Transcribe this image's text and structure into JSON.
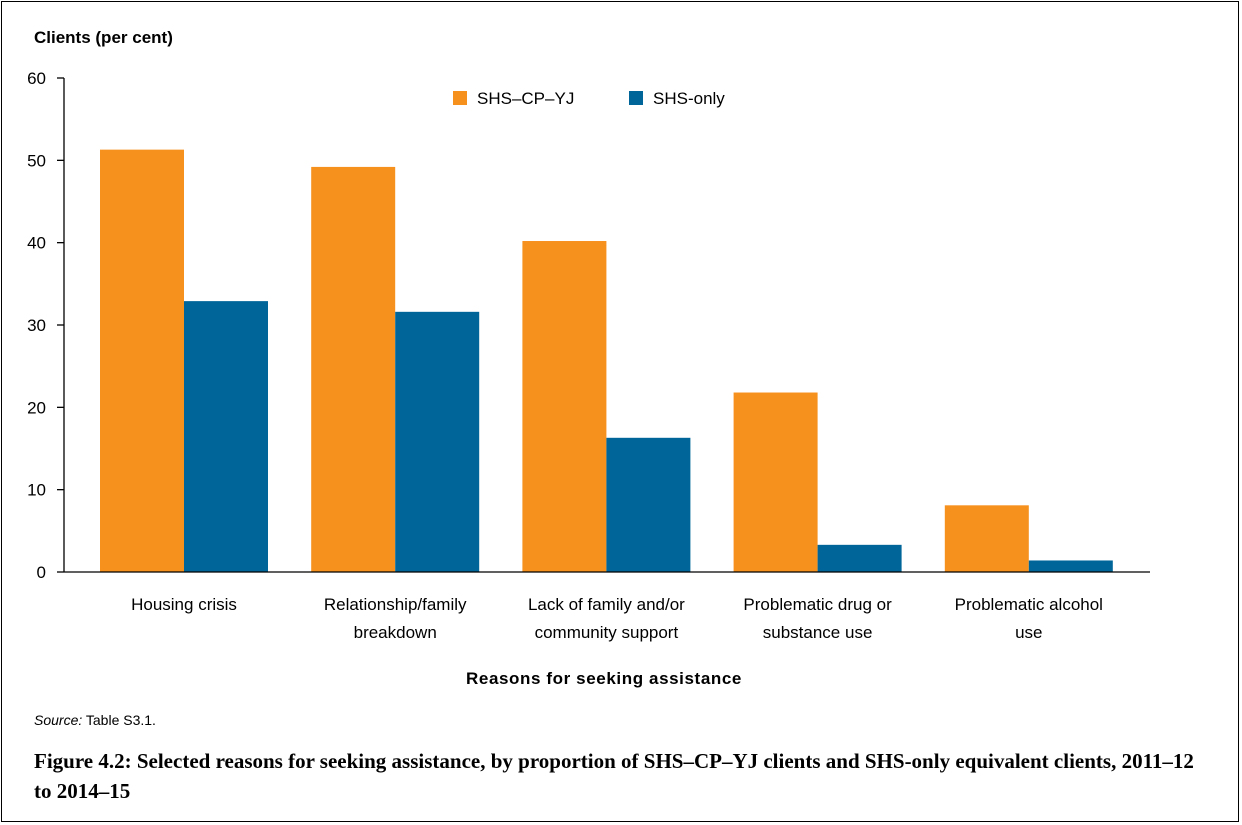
{
  "chart_data": {
    "type": "bar",
    "ylabel": "Clients (per cent)",
    "xlabel": "Reasons for seeking assistance",
    "ylim": [
      0,
      60
    ],
    "yticks": [
      0,
      10,
      20,
      30,
      40,
      50,
      60
    ],
    "categories": [
      [
        "Housing crisis"
      ],
      [
        "Relationship/family",
        "breakdown"
      ],
      [
        "Lack of family and/or",
        "community support"
      ],
      [
        "Problematic drug or",
        "substance use"
      ],
      [
        "Problematic alcohol",
        "use"
      ]
    ],
    "series": [
      {
        "name": "SHS–CP–YJ",
        "color": "#F7911E",
        "values": [
          51.3,
          49.2,
          40.2,
          21.8,
          8.1
        ]
      },
      {
        "name": "SHS-only",
        "color": "#006699",
        "values": [
          32.9,
          31.6,
          16.3,
          3.3,
          1.4
        ]
      }
    ],
    "legend_position": "top-center",
    "grid": false
  },
  "source": {
    "label": "Source:",
    "text": " Table S3.1."
  },
  "caption": "Figure 4.2: Selected reasons for seeking assistance, by proportion of SHS–CP–YJ clients and SHS-only equivalent clients, 2011–12 to 2014–15"
}
